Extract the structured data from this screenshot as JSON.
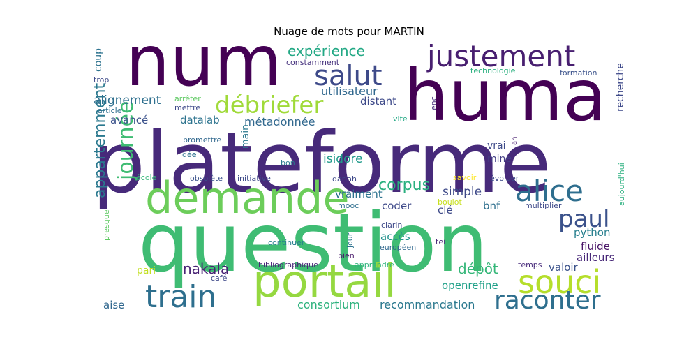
{
  "title": "Nuage de mots pour MARTIN",
  "words": [
    {
      "text": "plateforme",
      "color": "#472a7a"
    },
    {
      "text": "question",
      "color": "#3fbc73"
    },
    {
      "text": "huma",
      "color": "#440154"
    },
    {
      "text": "num",
      "color": "#440154"
    },
    {
      "text": "portail",
      "color": "#95d840"
    },
    {
      "text": "demande",
      "color": "#6ccd5a"
    },
    {
      "text": "justement",
      "color": "#481f70"
    },
    {
      "text": "train",
      "color": "#2e6f8e"
    },
    {
      "text": "souci",
      "color": "#b5de2b"
    },
    {
      "text": "alice",
      "color": "#2e6e8e"
    },
    {
      "text": "salut",
      "color": "#3e4a89"
    },
    {
      "text": "raconter",
      "color": "#2e6f8e"
    },
    {
      "text": "débriefer",
      "color": "#a0da39"
    },
    {
      "text": "paul",
      "color": "#3b528b"
    },
    {
      "text": "journée",
      "color": "#3fbc73"
    },
    {
      "text": "appartemment",
      "color": "#2a788e"
    },
    {
      "text": "corpus",
      "color": "#2ab07f"
    },
    {
      "text": "expérience",
      "color": "#22a884"
    },
    {
      "text": "nakala",
      "color": "#482374"
    },
    {
      "text": "dépôt",
      "color": "#35b779"
    },
    {
      "text": "alignement",
      "color": "#2e6f8e"
    },
    {
      "text": "consortium",
      "color": "#2db27d"
    },
    {
      "text": "recommandation",
      "color": "#2a788e"
    },
    {
      "text": "openrefine",
      "color": "#1fa088"
    },
    {
      "text": "métadonnée",
      "color": "#31688e"
    },
    {
      "text": "utilisateur",
      "color": "#31688e"
    },
    {
      "text": "simple",
      "color": "#3e4a89"
    },
    {
      "text": "isidore",
      "color": "#1f9a8a"
    },
    {
      "text": "python",
      "color": "#277f8e"
    },
    {
      "text": "fluide",
      "color": "#471365"
    },
    {
      "text": "ailleurs",
      "color": "#482878"
    },
    {
      "text": "valoir",
      "color": "#3b528b"
    },
    {
      "text": "coder",
      "color": "#3e4989"
    },
    {
      "text": "vraiment",
      "color": "#2c728e"
    },
    {
      "text": "accès",
      "color": "#21918c"
    },
    {
      "text": "distant",
      "color": "#3e4a89"
    },
    {
      "text": "datalab",
      "color": "#2c738e"
    },
    {
      "text": "avancé",
      "color": "#3b528b"
    },
    {
      "text": "clé",
      "color": "#3e4a89"
    },
    {
      "text": "bnf",
      "color": "#2e6f8e"
    },
    {
      "text": "recherche",
      "color": "#3e4989"
    },
    {
      "text": "aise",
      "color": "#31688e"
    },
    {
      "text": "coup",
      "color": "#2c728e"
    },
    {
      "text": "vrai",
      "color": "#3e4a89"
    },
    {
      "text": "mine",
      "color": "#433e85"
    },
    {
      "text": "main",
      "color": "#2a788e"
    },
    {
      "text": "pari",
      "color": "#c2df23"
    },
    {
      "text": "presque",
      "color": "#5ec962"
    },
    {
      "text": "constamment",
      "color": "#46327e"
    },
    {
      "text": "technologie",
      "color": "#2ab07f"
    },
    {
      "text": "formation",
      "color": "#3b528b"
    },
    {
      "text": "trop",
      "color": "#3e4a89"
    },
    {
      "text": "arrêter",
      "color": "#5ec962"
    },
    {
      "text": "mettre",
      "color": "#3e4989"
    },
    {
      "text": "article",
      "color": "#2e6e8e"
    },
    {
      "text": "vite",
      "color": "#22a884"
    },
    {
      "text": "enc",
      "color": "#472d7b"
    },
    {
      "text": "promettre",
      "color": "#31688e"
    },
    {
      "text": "idée",
      "color": "#2c728e"
    },
    {
      "text": "an",
      "color": "#481d6f"
    },
    {
      "text": "bon",
      "color": "#2a788e"
    },
    {
      "text": "école",
      "color": "#35b779"
    },
    {
      "text": "obsolète",
      "color": "#3b528b"
    },
    {
      "text": "initiative",
      "color": "#3e4a89"
    },
    {
      "text": "dariah",
      "color": "#3e4989"
    },
    {
      "text": "savoir",
      "color": "#fde725"
    },
    {
      "text": "évoluer",
      "color": "#3e4a89"
    },
    {
      "text": "aujourd'hui",
      "color": "#2ab07f"
    },
    {
      "text": "mooc",
      "color": "#2e6e8e"
    },
    {
      "text": "boulot",
      "color": "#c8e020"
    },
    {
      "text": "multiplier",
      "color": "#3e4989"
    },
    {
      "text": "clarin",
      "color": "#3e4989"
    },
    {
      "text": "jour",
      "color": "#2c728e"
    },
    {
      "text": "continuer",
      "color": "#277f8e"
    },
    {
      "text": "tei",
      "color": "#482878"
    },
    {
      "text": "européen",
      "color": "#31688e"
    },
    {
      "text": "bien",
      "color": "#48186a"
    },
    {
      "text": "bibliographique",
      "color": "#482878"
    },
    {
      "text": "apprendre",
      "color": "#2fb47c"
    },
    {
      "text": "temps",
      "color": "#472a7a"
    },
    {
      "text": "café",
      "color": "#3e4989"
    }
  ]
}
